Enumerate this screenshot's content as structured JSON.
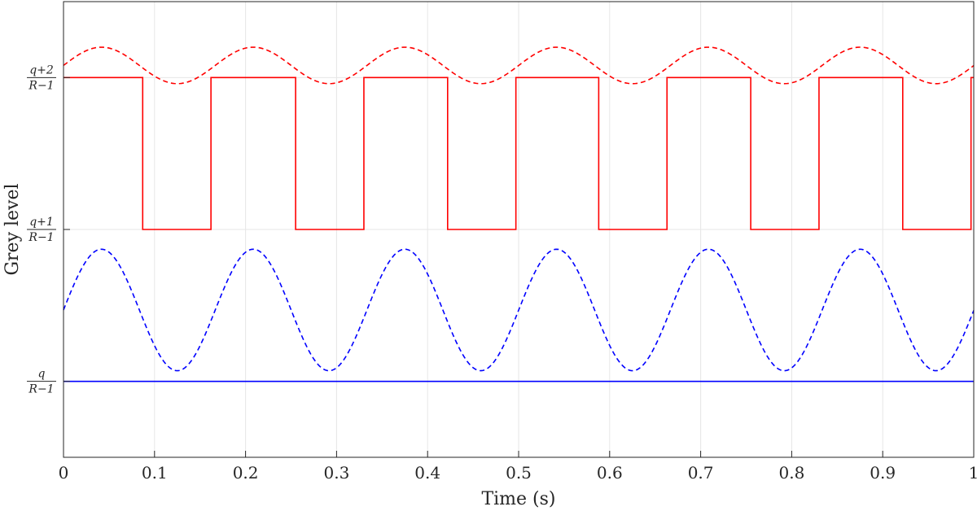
{
  "chart_data": {
    "type": "line",
    "title": "",
    "xlabel": "Time (s)",
    "ylabel": "Grey level",
    "xlim": [
      0,
      1
    ],
    "ylim": [
      -0.5,
      2.5
    ],
    "grid": true,
    "x_ticks": [
      0,
      0.1,
      0.2,
      0.3,
      0.4,
      0.5,
      0.6,
      0.7,
      0.8,
      0.9,
      1
    ],
    "x_tick_labels": [
      "0",
      "0.1",
      "0.2",
      "0.3",
      "0.4",
      "0.5",
      "0.6",
      "0.7",
      "0.8",
      "0.9",
      "1"
    ],
    "y_ticks": [
      {
        "value": 0,
        "numerator": "q",
        "denominator": "R−1"
      },
      {
        "value": 1,
        "numerator": "q+1",
        "denominator": "R−1"
      },
      {
        "value": 2,
        "numerator": "q+2",
        "denominator": "R−1"
      }
    ],
    "series": [
      {
        "name": "red-sinusoid",
        "color": "#ff0000",
        "style": "dashed",
        "kind": "sine",
        "offset": 2.08,
        "amplitude": 0.12,
        "period": 0.1667,
        "phase_shift": 0.0
      },
      {
        "name": "red-square-wave",
        "color": "#ff0000",
        "style": "solid",
        "kind": "step",
        "x": [
          0,
          0.087,
          0.087,
          0.162,
          0.162,
          0.255,
          0.255,
          0.33,
          0.33,
          0.422,
          0.422,
          0.497,
          0.497,
          0.588,
          0.588,
          0.663,
          0.663,
          0.755,
          0.755,
          0.83,
          0.83,
          0.922,
          0.922,
          0.997,
          0.997,
          1.0
        ],
        "y": [
          2,
          2,
          1,
          1,
          2,
          2,
          1,
          1,
          2,
          2,
          1,
          1,
          2,
          2,
          1,
          1,
          2,
          2,
          1,
          1,
          2,
          2,
          1,
          1,
          2,
          2
        ]
      },
      {
        "name": "blue-sinusoid",
        "color": "#0000ff",
        "style": "dashed",
        "kind": "sine",
        "offset": 0.47,
        "amplitude": 0.4,
        "period": 0.1667,
        "phase_shift": 0.0
      },
      {
        "name": "blue-constant",
        "color": "#0000ff",
        "style": "solid",
        "kind": "step",
        "x": [
          0,
          1
        ],
        "y": [
          0,
          0
        ]
      }
    ]
  }
}
